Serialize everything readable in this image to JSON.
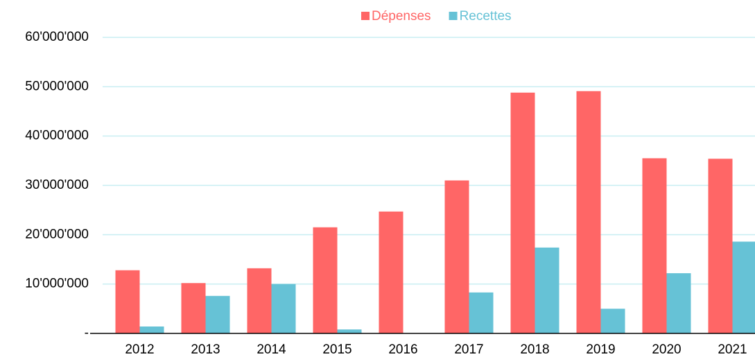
{
  "chart_data": {
    "type": "bar",
    "categories": [
      "2012",
      "2013",
      "2014",
      "2015",
      "2016",
      "2017",
      "2018",
      "2019",
      "2020",
      "2021"
    ],
    "series": [
      {
        "name": "Dépenses",
        "color": "#ff6666",
        "values": [
          12800000,
          10200000,
          13200000,
          21500000,
          24700000,
          31000000,
          48800000,
          49100000,
          35500000,
          35400000
        ]
      },
      {
        "name": "Recettes",
        "color": "#66c2d6",
        "values": [
          1400000,
          7600000,
          10000000,
          800000,
          0,
          8300000,
          17400000,
          5000000,
          12200000,
          18600000
        ]
      }
    ],
    "ylim": [
      0,
      60000000
    ],
    "yticks": [
      {
        "value": 0,
        "label": "-"
      },
      {
        "value": 10000000,
        "label": "10'000'000"
      },
      {
        "value": 20000000,
        "label": "20'000'000"
      },
      {
        "value": 30000000,
        "label": "30'000'000"
      },
      {
        "value": 40000000,
        "label": "40'000'000"
      },
      {
        "value": 50000000,
        "label": "50'000'000"
      },
      {
        "value": 60000000,
        "label": "60'000'000"
      }
    ],
    "grid": true,
    "legend": "top"
  }
}
